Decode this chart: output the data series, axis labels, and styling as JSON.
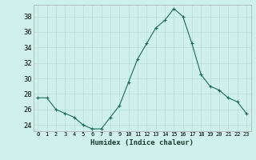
{
  "x": [
    0,
    1,
    2,
    3,
    4,
    5,
    6,
    7,
    8,
    9,
    10,
    11,
    12,
    13,
    14,
    15,
    16,
    17,
    18,
    19,
    20,
    21,
    22,
    23
  ],
  "y": [
    27.5,
    27.5,
    26.0,
    25.5,
    25.0,
    24.0,
    23.5,
    23.5,
    25.0,
    26.5,
    29.5,
    32.5,
    34.5,
    36.5,
    37.5,
    39.0,
    38.0,
    34.5,
    30.5,
    29.0,
    28.5,
    27.5,
    27.0,
    25.5
  ],
  "line_color": "#1a6b5a",
  "marker": "+",
  "marker_color": "#1a6b5a",
  "bg_color": "#cff0eb",
  "grid_color": "#b8ddd8",
  "xlabel": "Humidex (Indice chaleur)",
  "ylabel_ticks": [
    24,
    26,
    28,
    30,
    32,
    34,
    36,
    38
  ],
  "xlim": [
    -0.5,
    23.5
  ],
  "ylim": [
    23.2,
    39.5
  ],
  "xtick_fontsize": 5.0,
  "ytick_fontsize": 6.0,
  "xlabel_fontsize": 6.5
}
